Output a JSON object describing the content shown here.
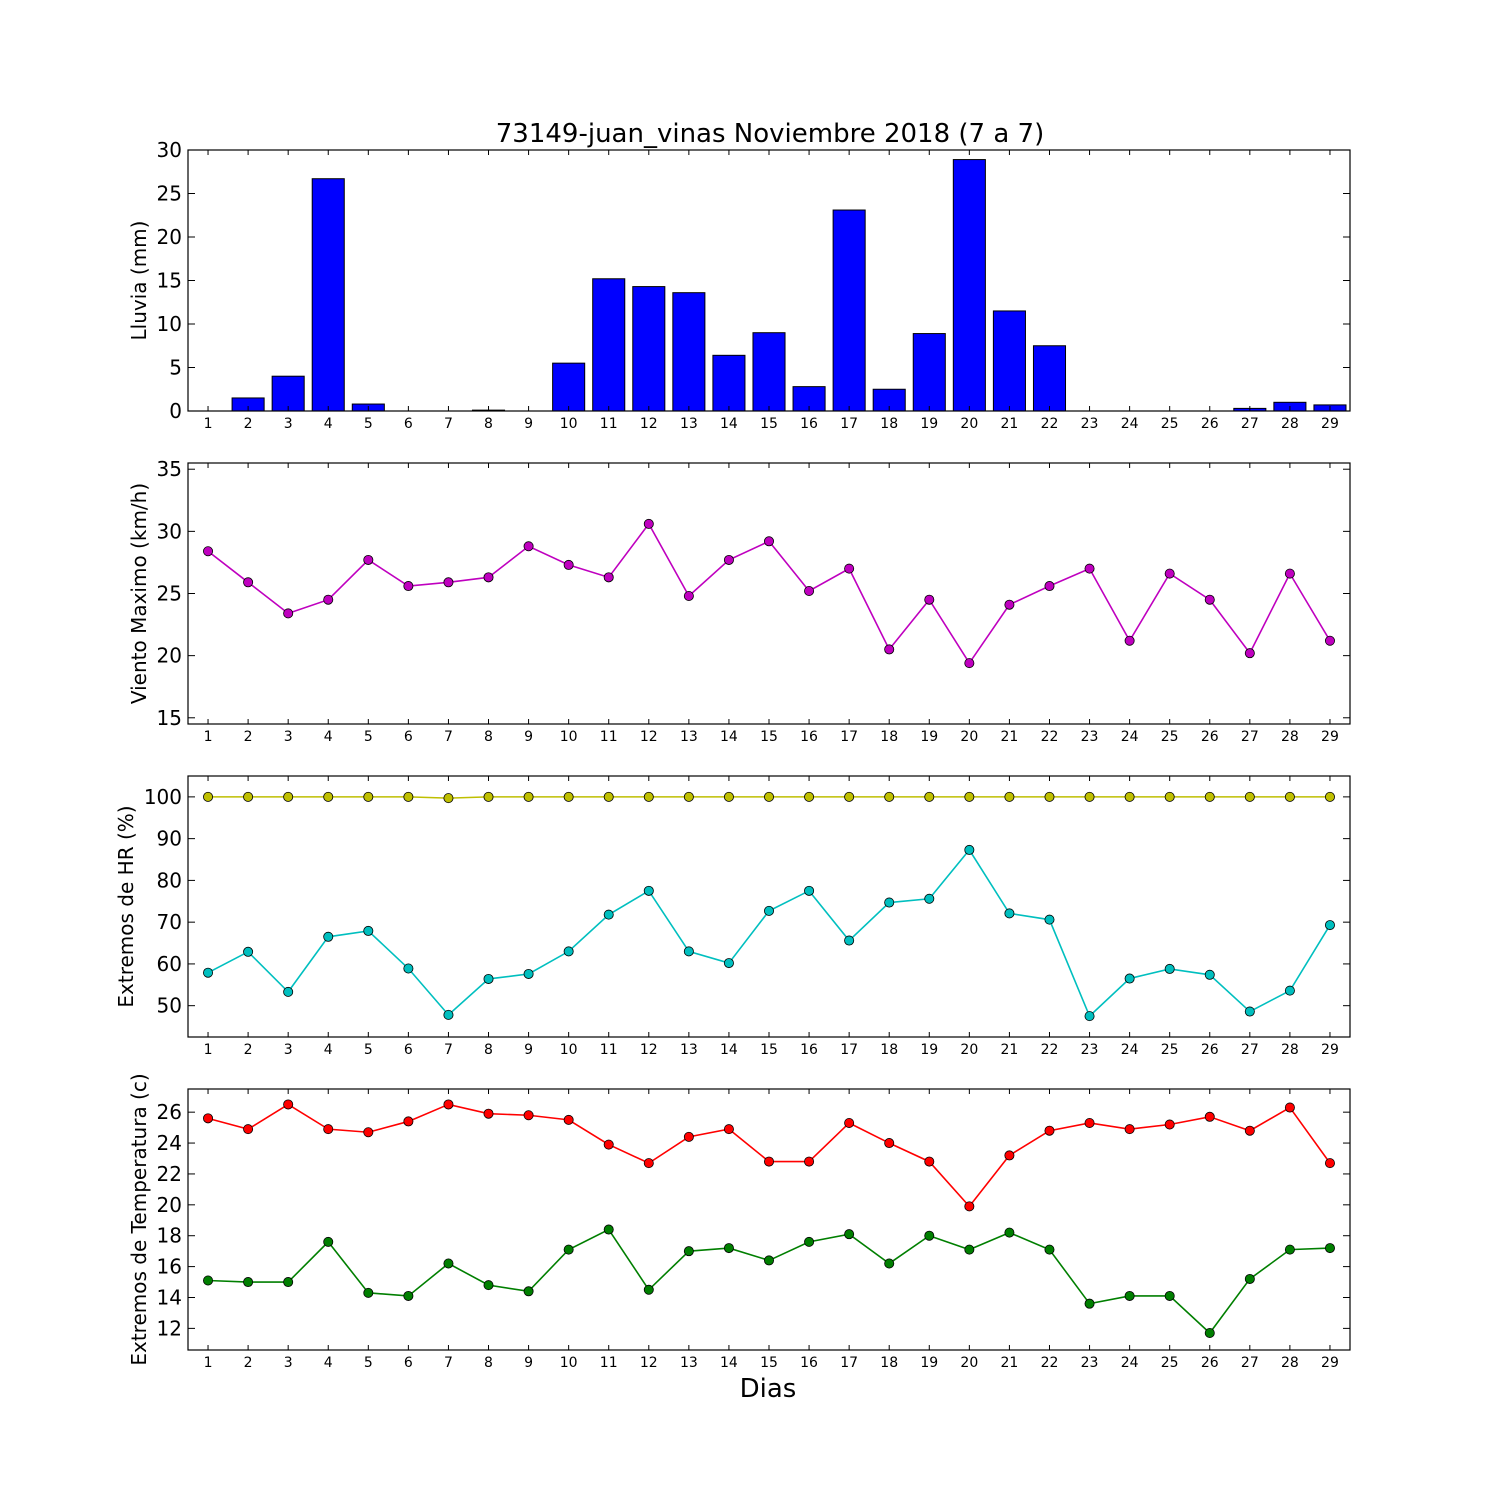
{
  "title": "73149-juan_vinas Noviembre 2018  (7 a 7)",
  "xlabel": "Dias",
  "chart_data": [
    {
      "type": "bar",
      "ylabel": "Lluvia (mm)",
      "ylim": [
        0,
        30
      ],
      "yticks": [
        0,
        5,
        10,
        15,
        20,
        25,
        30
      ],
      "categories": [
        "1",
        "2",
        "3",
        "4",
        "5",
        "6",
        "7",
        "8",
        "9",
        "10",
        "11",
        "12",
        "13",
        "14",
        "15",
        "16",
        "17",
        "18",
        "19",
        "20",
        "21",
        "22",
        "23",
        "24",
        "25",
        "26",
        "27",
        "28",
        "29"
      ],
      "values": [
        0,
        1.5,
        4.0,
        26.7,
        0.8,
        0,
        0,
        0.1,
        0,
        5.5,
        15.2,
        14.3,
        13.6,
        6.4,
        9.0,
        2.8,
        23.1,
        2.5,
        8.9,
        28.9,
        11.5,
        7.5,
        0,
        0,
        0,
        0,
        0.3,
        1.0,
        0.7
      ],
      "color": "#0000ff",
      "edgecolor": "#000000"
    },
    {
      "type": "line",
      "ylabel": "Viento Maximo (km/h)",
      "ylim": [
        14.5,
        35.5
      ],
      "yticks": [
        15,
        20,
        25,
        30,
        35
      ],
      "categories": [
        "1",
        "2",
        "3",
        "4",
        "5",
        "6",
        "7",
        "8",
        "9",
        "10",
        "11",
        "12",
        "13",
        "14",
        "15",
        "16",
        "17",
        "18",
        "19",
        "20",
        "21",
        "22",
        "23",
        "24",
        "25",
        "26",
        "27",
        "28",
        "29"
      ],
      "series": [
        {
          "values": [
            28.4,
            25.9,
            23.4,
            24.5,
            27.7,
            25.6,
            25.9,
            26.3,
            28.8,
            27.3,
            26.3,
            30.6,
            24.8,
            27.7,
            29.2,
            25.2,
            27.0,
            20.5,
            24.5,
            19.4,
            24.1,
            25.6,
            27.0,
            21.2,
            26.6,
            24.5,
            20.2,
            26.6,
            21.2
          ],
          "color": "#bf00bf"
        }
      ]
    },
    {
      "type": "line",
      "ylabel": "Extremos de HR (%)",
      "ylim": [
        42.5,
        105
      ],
      "yticks": [
        50,
        60,
        70,
        80,
        90,
        100
      ],
      "categories": [
        "1",
        "2",
        "3",
        "4",
        "5",
        "6",
        "7",
        "8",
        "9",
        "10",
        "11",
        "12",
        "13",
        "14",
        "15",
        "16",
        "17",
        "18",
        "19",
        "20",
        "21",
        "22",
        "23",
        "24",
        "25",
        "26",
        "27",
        "28",
        "29"
      ],
      "series": [
        {
          "values": [
            100,
            100,
            100,
            100,
            100,
            100,
            99.7,
            100,
            100,
            100,
            100,
            100,
            100,
            100,
            100,
            100,
            100,
            100,
            100,
            100,
            100,
            100,
            100,
            100,
            100,
            100,
            100,
            100,
            100
          ],
          "color": "#bfbf00"
        },
        {
          "values": [
            57.9,
            62.9,
            53.3,
            66.5,
            67.9,
            58.9,
            47.8,
            56.4,
            57.6,
            63.0,
            71.8,
            77.5,
            63.0,
            60.2,
            72.7,
            77.5,
            65.6,
            74.7,
            75.6,
            87.3,
            72.1,
            70.6,
            47.5,
            56.5,
            58.8,
            57.4,
            48.6,
            53.6,
            69.3
          ],
          "color": "#00bfbf"
        }
      ]
    },
    {
      "type": "line",
      "ylabel": "Extremos de Temperatura (c)",
      "ylim": [
        10.6,
        27.5
      ],
      "yticks": [
        12,
        14,
        16,
        18,
        20,
        22,
        24,
        26
      ],
      "categories": [
        "1",
        "2",
        "3",
        "4",
        "5",
        "6",
        "7",
        "8",
        "9",
        "10",
        "11",
        "12",
        "13",
        "14",
        "15",
        "16",
        "17",
        "18",
        "19",
        "20",
        "21",
        "22",
        "23",
        "24",
        "25",
        "26",
        "27",
        "28",
        "29"
      ],
      "series": [
        {
          "values": [
            25.6,
            24.9,
            26.5,
            24.9,
            24.7,
            25.4,
            26.5,
            25.9,
            25.8,
            25.5,
            23.9,
            22.7,
            24.4,
            24.9,
            22.8,
            22.8,
            25.3,
            24.0,
            22.8,
            19.9,
            23.2,
            24.8,
            25.3,
            24.9,
            25.2,
            25.7,
            24.8,
            26.3,
            22.7
          ],
          "color": "#ff0000"
        },
        {
          "values": [
            15.1,
            15.0,
            15.0,
            17.6,
            14.3,
            14.1,
            16.2,
            14.8,
            14.4,
            17.1,
            18.4,
            14.5,
            17.0,
            17.2,
            16.4,
            17.6,
            18.1,
            16.2,
            18.0,
            17.1,
            18.2,
            17.1,
            13.6,
            14.1,
            14.1,
            11.7,
            15.2,
            17.1,
            17.2
          ],
          "color": "#007f00"
        }
      ]
    }
  ]
}
